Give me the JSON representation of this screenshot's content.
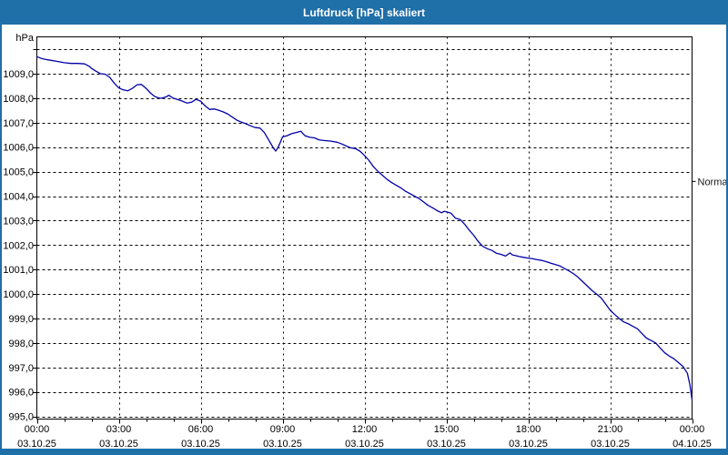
{
  "window": {
    "title": "Luftdruck [hPa] skaliert"
  },
  "colors": {
    "frame": "#1f6fa8",
    "titlebar": "#1f6fa8",
    "title_text": "#ffffff",
    "plot_background": "#ffffff",
    "plot_border": "#000000",
    "gridline": "#000000",
    "axis_text": "#000000",
    "curve": "#0000a8",
    "annotation_text": "#1a1a1a"
  },
  "chart_data": {
    "type": "line",
    "title": "Luftdruck [hPa] skaliert",
    "grid": "dashed",
    "legend_position": "none",
    "y_axis": {
      "unit_label": "hPa",
      "min": 995.0,
      "max": 1010.0,
      "gridline_step": 1.0,
      "tick_labels": [
        "1009,0",
        "1008,0",
        "1007,0",
        "1006,0",
        "1005,0",
        "1004,0",
        "1003,0",
        "1002,0",
        "1001,0",
        "1000,0",
        "999,0",
        "998,0",
        "997,0",
        "996,0",
        "995,0"
      ],
      "tick_values": [
        1009,
        1008,
        1007,
        1006,
        1005,
        1004,
        1003,
        1002,
        1001,
        1000,
        999,
        998,
        997,
        996,
        995
      ]
    },
    "x_axis": {
      "start_hour": 0,
      "end_hour": 24,
      "major_step_hours": 3,
      "minor_step_hours": 1,
      "ticks": [
        {
          "hour": 0,
          "time": "00:00",
          "date": "03.10.25"
        },
        {
          "hour": 3,
          "time": "03:00",
          "date": "03.10.25"
        },
        {
          "hour": 6,
          "time": "06:00",
          "date": "03.10.25"
        },
        {
          "hour": 9,
          "time": "09:00",
          "date": "03.10.25"
        },
        {
          "hour": 12,
          "time": "12:00",
          "date": "03.10.25"
        },
        {
          "hour": 15,
          "time": "15:00",
          "date": "03.10.25"
        },
        {
          "hour": 18,
          "time": "18:00",
          "date": "03.10.25"
        },
        {
          "hour": 21,
          "time": "21:00",
          "date": "03.10.25"
        },
        {
          "hour": 24,
          "time": "00:00",
          "date": "04.10.25"
        }
      ]
    },
    "right_annotation": {
      "label": "Normal",
      "value": 1004.6
    },
    "series": [
      {
        "name": "Luftdruck",
        "unit": "hPa",
        "color": "#0000a8",
        "points": [
          [
            0,
            1009.7
          ],
          [
            0.17,
            1009.62
          ],
          [
            0.33,
            1009.58
          ],
          [
            0.5,
            1009.55
          ],
          [
            0.75,
            1009.5
          ],
          [
            1,
            1009.45
          ],
          [
            1.25,
            1009.42
          ],
          [
            1.5,
            1009.42
          ],
          [
            1.75,
            1009.4
          ],
          [
            1.92,
            1009.3
          ],
          [
            2,
            1009.22
          ],
          [
            2.17,
            1009.1
          ],
          [
            2.33,
            1009.0
          ],
          [
            2.5,
            1008.98
          ],
          [
            2.67,
            1008.85
          ],
          [
            2.83,
            1008.62
          ],
          [
            3,
            1008.42
          ],
          [
            3.17,
            1008.34
          ],
          [
            3.33,
            1008.3
          ],
          [
            3.5,
            1008.4
          ],
          [
            3.67,
            1008.55
          ],
          [
            3.83,
            1008.56
          ],
          [
            4,
            1008.4
          ],
          [
            4.17,
            1008.2
          ],
          [
            4.33,
            1008.06
          ],
          [
            4.5,
            1008.0
          ],
          [
            4.58,
            1008.0
          ],
          [
            4.75,
            1008.06
          ],
          [
            4.83,
            1008.12
          ],
          [
            5,
            1008.0
          ],
          [
            5.17,
            1007.94
          ],
          [
            5.33,
            1007.88
          ],
          [
            5.5,
            1007.8
          ],
          [
            5.67,
            1007.84
          ],
          [
            5.83,
            1007.95
          ],
          [
            6,
            1007.88
          ],
          [
            6.08,
            1007.78
          ],
          [
            6.17,
            1007.68
          ],
          [
            6.33,
            1007.54
          ],
          [
            6.5,
            1007.56
          ],
          [
            6.67,
            1007.5
          ],
          [
            6.83,
            1007.44
          ],
          [
            7,
            1007.35
          ],
          [
            7.17,
            1007.22
          ],
          [
            7.33,
            1007.1
          ],
          [
            7.5,
            1007.02
          ],
          [
            7.67,
            1006.95
          ],
          [
            7.83,
            1006.87
          ],
          [
            8,
            1006.8
          ],
          [
            8.17,
            1006.78
          ],
          [
            8.33,
            1006.6
          ],
          [
            8.5,
            1006.28
          ],
          [
            8.67,
            1005.95
          ],
          [
            8.75,
            1005.84
          ],
          [
            8.83,
            1005.98
          ],
          [
            8.92,
            1006.2
          ],
          [
            9,
            1006.42
          ],
          [
            9.17,
            1006.47
          ],
          [
            9.33,
            1006.55
          ],
          [
            9.5,
            1006.6
          ],
          [
            9.67,
            1006.65
          ],
          [
            9.75,
            1006.55
          ],
          [
            9.83,
            1006.46
          ],
          [
            10,
            1006.4
          ],
          [
            10.17,
            1006.38
          ],
          [
            10.33,
            1006.3
          ],
          [
            10.5,
            1006.27
          ],
          [
            10.75,
            1006.25
          ],
          [
            11,
            1006.2
          ],
          [
            11.17,
            1006.13
          ],
          [
            11.33,
            1006.05
          ],
          [
            11.5,
            1005.97
          ],
          [
            11.67,
            1005.94
          ],
          [
            11.83,
            1005.84
          ],
          [
            12,
            1005.66
          ],
          [
            12.17,
            1005.45
          ],
          [
            12.33,
            1005.2
          ],
          [
            12.5,
            1005.0
          ],
          [
            12.67,
            1004.84
          ],
          [
            12.83,
            1004.68
          ],
          [
            13,
            1004.55
          ],
          [
            13.17,
            1004.44
          ],
          [
            13.33,
            1004.34
          ],
          [
            13.5,
            1004.2
          ],
          [
            13.67,
            1004.1
          ],
          [
            13.83,
            1004.0
          ],
          [
            14,
            1003.9
          ],
          [
            14.17,
            1003.76
          ],
          [
            14.33,
            1003.62
          ],
          [
            14.5,
            1003.52
          ],
          [
            14.67,
            1003.4
          ],
          [
            14.83,
            1003.32
          ],
          [
            14.92,
            1003.38
          ],
          [
            15,
            1003.36
          ],
          [
            15.17,
            1003.3
          ],
          [
            15.33,
            1003.1
          ],
          [
            15.5,
            1003.05
          ],
          [
            15.67,
            1002.85
          ],
          [
            15.83,
            1002.62
          ],
          [
            16,
            1002.4
          ],
          [
            16.17,
            1002.14
          ],
          [
            16.33,
            1001.95
          ],
          [
            16.5,
            1001.85
          ],
          [
            16.67,
            1001.78
          ],
          [
            16.83,
            1001.67
          ],
          [
            17,
            1001.62
          ],
          [
            17.17,
            1001.55
          ],
          [
            17.33,
            1001.68
          ],
          [
            17.42,
            1001.6
          ],
          [
            17.5,
            1001.58
          ],
          [
            17.67,
            1001.53
          ],
          [
            17.83,
            1001.5
          ],
          [
            18,
            1001.47
          ],
          [
            18.17,
            1001.44
          ],
          [
            18.33,
            1001.4
          ],
          [
            18.5,
            1001.37
          ],
          [
            18.67,
            1001.32
          ],
          [
            18.83,
            1001.26
          ],
          [
            19,
            1001.2
          ],
          [
            19.17,
            1001.14
          ],
          [
            19.33,
            1001.04
          ],
          [
            19.5,
            1000.94
          ],
          [
            19.67,
            1000.82
          ],
          [
            19.83,
            1000.68
          ],
          [
            20,
            1000.5
          ],
          [
            20.17,
            1000.32
          ],
          [
            20.33,
            1000.15
          ],
          [
            20.5,
            1000.0
          ],
          [
            20.67,
            999.84
          ],
          [
            20.83,
            999.6
          ],
          [
            21,
            999.34
          ],
          [
            21.17,
            999.16
          ],
          [
            21.33,
            999.0
          ],
          [
            21.5,
            998.86
          ],
          [
            21.67,
            998.78
          ],
          [
            21.83,
            998.68
          ],
          [
            22,
            998.58
          ],
          [
            22.17,
            998.38
          ],
          [
            22.33,
            998.2
          ],
          [
            22.5,
            998.1
          ],
          [
            22.67,
            998.0
          ],
          [
            22.83,
            997.8
          ],
          [
            23,
            997.6
          ],
          [
            23.17,
            997.46
          ],
          [
            23.33,
            997.36
          ],
          [
            23.5,
            997.2
          ],
          [
            23.67,
            997.04
          ],
          [
            23.83,
            996.76
          ],
          [
            23.92,
            996.3
          ],
          [
            24,
            995.68
          ]
        ]
      }
    ]
  }
}
